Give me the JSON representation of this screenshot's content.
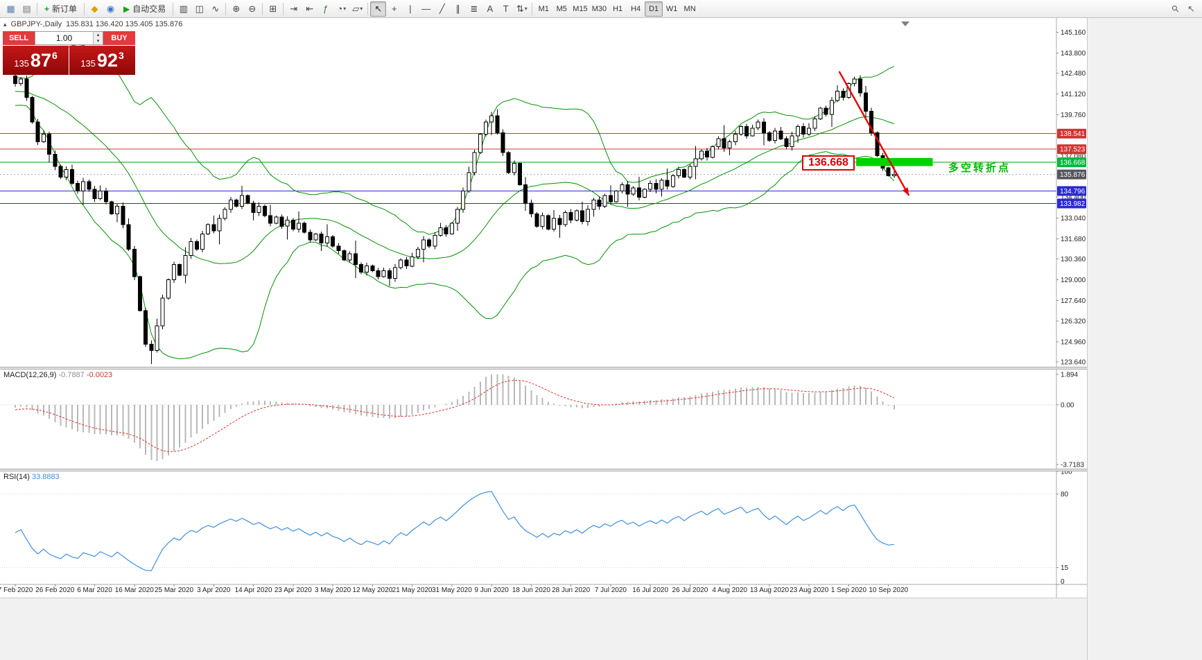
{
  "toolbar": {
    "new_order_label": "新订单",
    "autotrading_label": "自动交易",
    "icon_groups": [
      [
        "new-chart",
        "profiles"
      ],
      [
        "NEW_ORDER"
      ],
      [
        "metaeditor",
        "terminal",
        "AUTOTRADING"
      ],
      [
        "bar-chart",
        "candlestick-chart",
        "line-chart"
      ],
      [
        "zoom-in",
        "zoom-out"
      ],
      [
        "tile-windows"
      ],
      [
        "auto-scroll",
        "chart-shift",
        "indicators",
        "periods",
        "templates"
      ],
      [
        "cursor",
        "crosshair",
        "vertical-line",
        "horizontal-line",
        "trendline",
        "channel",
        "fibonacci",
        "text",
        "label",
        "arrows"
      ]
    ],
    "timeframes": [
      "M1",
      "M5",
      "M15",
      "M30",
      "H1",
      "H4",
      "D1",
      "W1",
      "MN"
    ],
    "active_timeframe": "D1",
    "active_tool": "cursor",
    "right_icons": [
      "search",
      "pointer"
    ]
  },
  "chart": {
    "symbol_label": "GBPJPY-,Daily",
    "ohlc_label": "135.831 136.420 135.405 135.876",
    "price_axis": {
      "ticks": [
        "145.160",
        "143.800",
        "142.480",
        "141.120",
        "139.760",
        "137.080",
        "134.400",
        "133.040",
        "131.680",
        "130.360",
        "129.000",
        "127.640",
        "126.320",
        "124.960",
        "123.640"
      ],
      "badges": [
        {
          "text": "138.541",
          "bg": "#d03434"
        },
        {
          "text": "137.523",
          "bg": "#d03434"
        },
        {
          "text": "136.668",
          "bg": "#00b93c"
        },
        {
          "text": "135.876",
          "bg": "#55555e"
        },
        {
          "text": "134.796",
          "bg": "#2a2ad2"
        },
        {
          "text": "133.982",
          "bg": "#2a2ad2"
        }
      ]
    },
    "hlines": [
      {
        "price": 138.541,
        "color": "#d03434"
      },
      {
        "price": 137.523,
        "color": "#d03434"
      },
      {
        "price": 136.668,
        "color": "#00a000"
      },
      {
        "price": 134.796,
        "color": "#2a2ad2"
      },
      {
        "price": 133.982,
        "color": "#2a2ad2"
      }
    ],
    "bid_line": {
      "price": 135.876,
      "color": "#aaaaaa"
    },
    "dates": [
      "7 Feb 2020",
      "26 Feb 2020",
      "6 Mar 2020",
      "16 Mar 2020",
      "25 Mar 2020",
      "3 Apr 2020",
      "14 Apr 2020",
      "23 Apr 2020",
      "3 May 2020",
      "12 May 2020",
      "21 May 2020",
      "31 May 2020",
      "9 Jun 2020",
      "18 Jun 2020",
      "28 Jun 2020",
      "7 Jul 2020",
      "16 Jul 2020",
      "26 Jul 2020",
      "4 Aug 2020",
      "13 Aug 2020",
      "23 Aug 2020",
      "1 Sep 2020",
      "10 Sep 2020"
    ],
    "annotations": {
      "zone": {
        "from_index": 148.3,
        "to_index": 161.8,
        "price_top": 136.95,
        "price_bottom": 136.42,
        "color": "#00d200"
      },
      "zone_label": {
        "text": "136.668",
        "color": "#e00000"
      },
      "note": {
        "text": "多空转折点",
        "color": "#00bb00"
      },
      "arrow": {
        "from_index": 145.3,
        "from_price": 142.6,
        "to_index": 157.6,
        "to_price": 134.5,
        "color": "#e80000"
      }
    }
  },
  "trade": {
    "sell_label": "SELL",
    "buy_label": "BUY",
    "volume": "1.00",
    "sell": {
      "prefix": "135",
      "big": "87",
      "pip": "6"
    },
    "buy": {
      "prefix": "135",
      "big": "92",
      "pip": "3"
    }
  },
  "macd": {
    "label": "MACD(12,26,9)",
    "value_main": "-0.7887",
    "value_signal": "-0.0023",
    "axis": [
      "1.894",
      "0.00",
      "-3.7183"
    ]
  },
  "rsi": {
    "label": "RSI(14)",
    "value": "33.8883",
    "axis": [
      "100",
      "80",
      "15",
      "0"
    ]
  },
  "chart_data": {
    "type": "candlestick",
    "symbol": "GBPJPY",
    "timeframe": "Daily",
    "ohlc_current": {
      "open": 135.831,
      "high": 136.42,
      "low": 135.405,
      "close": 135.876
    },
    "label_step": 7,
    "y_axis": {
      "min": 123.42,
      "max": 145.9
    },
    "macd_scale": {
      "min": -3.7183,
      "max": 1.894
    },
    "rsi_scale": {
      "min": 0,
      "max": 100,
      "levels": [
        80,
        15
      ]
    },
    "bollinger": {
      "period": 20,
      "deviation": 2,
      "color": "#009000"
    },
    "candles": {
      "pre_history": [
        142.8,
        142.2,
        141.6,
        142.0,
        141.3,
        140.8,
        141.2,
        140.6,
        141.0,
        140.4,
        140.8,
        141.3,
        140.9,
        141.4,
        141.0,
        141.5,
        141.2,
        141.7,
        141.4,
        141.7
      ],
      "closes": [
        141.8,
        142.1,
        140.9,
        139.3,
        138.0,
        138.5,
        137.2,
        136.4,
        135.7,
        136.2,
        135.3,
        134.8,
        135.4,
        134.9,
        134.3,
        134.8,
        134.1,
        133.3,
        133.8,
        132.6,
        131.0,
        129.2,
        127.0,
        124.8,
        124.4,
        126.0,
        127.8,
        129.0,
        130.0,
        129.3,
        130.6,
        131.5,
        131.0,
        132.0,
        132.6,
        132.2,
        133.0,
        133.6,
        134.2,
        133.8,
        134.5,
        134.0,
        133.4,
        133.8,
        133.2,
        132.7,
        133.1,
        132.5,
        132.9,
        132.3,
        132.7,
        132.1,
        131.6,
        132.0,
        131.4,
        131.8,
        131.2,
        130.9,
        130.3,
        130.7,
        130.0,
        129.5,
        129.9,
        129.6,
        129.2,
        129.6,
        129.1,
        129.8,
        130.3,
        129.9,
        130.5,
        131.0,
        131.6,
        131.2,
        131.9,
        132.4,
        132.0,
        132.7,
        133.6,
        134.8,
        136.0,
        137.3,
        138.5,
        139.3,
        139.7,
        138.6,
        137.3,
        136.0,
        136.6,
        135.2,
        134.0,
        133.3,
        132.5,
        133.2,
        132.3,
        133.0,
        132.6,
        133.4,
        132.9,
        133.5,
        132.8,
        133.6,
        134.2,
        133.8,
        134.5,
        134.1,
        134.8,
        135.2,
        134.6,
        135.0,
        134.4,
        134.9,
        135.3,
        134.9,
        135.5,
        135.1,
        135.8,
        136.2,
        135.7,
        136.4,
        136.9,
        137.4,
        137.0,
        137.7,
        138.2,
        137.6,
        138.0,
        138.5,
        139.0,
        138.4,
        138.9,
        139.3,
        138.6,
        138.1,
        138.7,
        138.2,
        137.7,
        138.4,
        139.0,
        138.5,
        138.9,
        139.5,
        140.2,
        139.8,
        140.7,
        141.3,
        140.9,
        141.8,
        142.1,
        141.2,
        140.0,
        138.6,
        137.1,
        136.3,
        135.8,
        135.88
      ]
    }
  }
}
